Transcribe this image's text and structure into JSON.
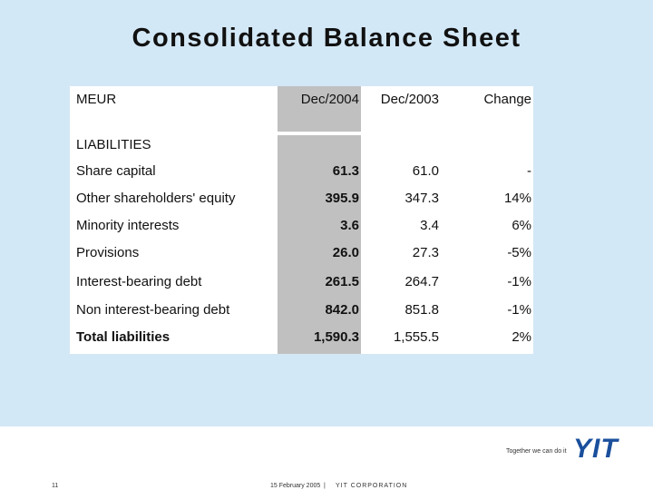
{
  "header": {
    "title": "Consolidated Balance Sheet"
  },
  "table": {
    "columns": [
      "MEUR",
      "Dec/2004",
      "Dec/2003",
      "Change"
    ],
    "section": "LIABILITIES",
    "rows": [
      [
        "Share capital",
        "61.3",
        "61.0",
        "-"
      ],
      [
        "Other shareholders' equity",
        "395.9",
        "347.3",
        "14%"
      ],
      [
        "Minority interests",
        "3.6",
        "3.4",
        "6%"
      ],
      [
        "Provisions",
        "26.0",
        "27.3",
        "-5%"
      ],
      [
        "Interest-bearing debt",
        "261.5",
        "264.7",
        "-1%"
      ],
      [
        "Non interest-bearing debt",
        "842.0",
        "851.8",
        "-1%"
      ],
      [
        "Total liabilities",
        "1,590.3",
        "1,555.5",
        "2%"
      ]
    ]
  },
  "footer": {
    "slogan": "Together we can do it",
    "logo": "YIT",
    "page": "11",
    "date": "15 February 2005",
    "separator": "|",
    "company": "YIT CORPORATION"
  }
}
